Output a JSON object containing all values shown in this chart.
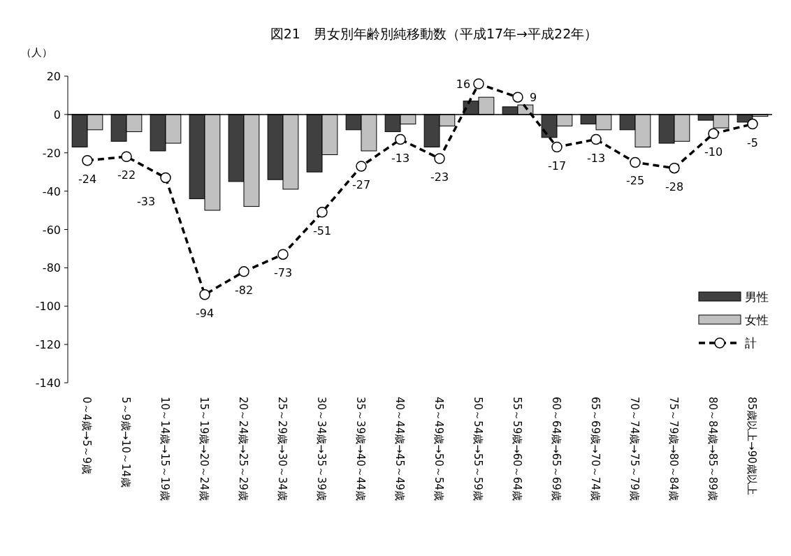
{
  "chart_data": {
    "type": "bar",
    "title": "図21　男女別年齢別純移動数（平成17年→平成22年）",
    "ylabel": "（人）",
    "categories": [
      "0～4歳→5～9歳",
      "5～9歳→10～14歳",
      "10～14歳→15～19歳",
      "15～19歳→20～24歳",
      "20～24歳→25～29歳",
      "25～29歳→30～34歳",
      "30～34歳→35～39歳",
      "35～39歳→40～44歳",
      "40～44歳→45～49歳",
      "45～49歳→50～54歳",
      "50～54歳→55～59歳",
      "55～59歳→60～64歳",
      "60～64歳→65～69歳",
      "65～69歳→70～74歳",
      "70～74歳→75～79歳",
      "75～79歳→80～84歳",
      "80～84歳→85～89歳",
      "85歳以上→90歳以上"
    ],
    "series": [
      {
        "name": "男性",
        "color": "#404040",
        "values": [
          -17,
          -14,
          -19,
          -44,
          -35,
          -34,
          -30,
          -8,
          -9,
          -17,
          7,
          4,
          -12,
          -5,
          -8,
          -15,
          -3,
          -4
        ]
      },
      {
        "name": "女性",
        "color": "#c0c0c0",
        "values": [
          -8,
          -9,
          -15,
          -50,
          -48,
          -39,
          -21,
          -19,
          -5,
          -6,
          9,
          5,
          -6,
          -8,
          -17,
          -14,
          -7,
          -1
        ]
      },
      {
        "name": "計",
        "color": "#000000",
        "type": "line",
        "line_style": "dashed",
        "marker": "circle",
        "values": [
          -24,
          -22,
          -33,
          -94,
          -82,
          -73,
          -51,
          -27,
          -13,
          -23,
          16,
          9,
          -17,
          -13,
          -25,
          -28,
          -10,
          -5
        ],
        "value_labels": [
          "-24",
          "-22",
          "-33",
          "-94",
          "-82",
          "-73",
          "-51",
          "-27",
          "-13",
          "-23",
          "16",
          "9",
          "-17",
          "-13",
          "-25",
          "-28",
          "-10",
          "-5"
        ]
      }
    ],
    "ylim": [
      -140,
      20
    ],
    "yticks": [
      -140,
      -120,
      -100,
      -80,
      -60,
      -40,
      -20,
      0,
      20
    ],
    "legend": "right"
  }
}
